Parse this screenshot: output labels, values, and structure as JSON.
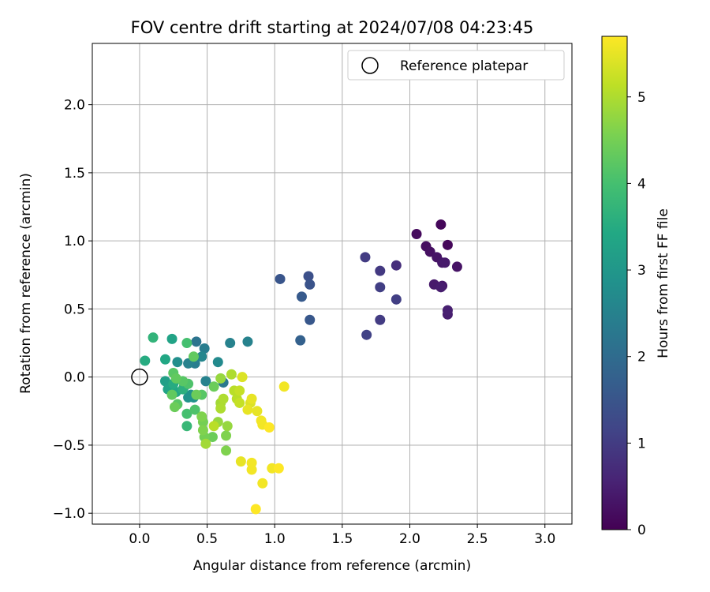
{
  "chart_data": {
    "type": "scatter",
    "title": "FOV centre drift starting at 2024/07/08 04:23:45",
    "xlabel": "Angular distance from reference (arcmin)",
    "ylabel": "Rotation from reference (arcmin)",
    "xlim": [
      -0.35,
      3.2
    ],
    "ylim": [
      -1.08,
      2.45
    ],
    "xticks": [
      0.0,
      0.5,
      1.0,
      1.5,
      2.0,
      2.5,
      3.0
    ],
    "xtick_labels": [
      "0.0",
      "0.5",
      "1.0",
      "1.5",
      "2.0",
      "2.5",
      "3.0"
    ],
    "yticks": [
      -1.0,
      -0.5,
      0.0,
      0.5,
      1.0,
      1.5,
      2.0
    ],
    "ytick_labels": [
      "−1.0",
      "−0.5",
      "0.0",
      "0.5",
      "1.0",
      "1.5",
      "2.0"
    ],
    "grid": true,
    "legend": {
      "placement": "top-right",
      "entries": [
        {
          "label": "Reference platepar",
          "marker": "open-circle"
        }
      ]
    },
    "reference_point": {
      "x": 0.0,
      "y": 0.0
    },
    "colorbar": {
      "label": "Hours from first FF file",
      "colormap": "viridis",
      "range": [
        0,
        5.7
      ],
      "ticks": [
        0,
        1,
        2,
        3,
        4,
        5
      ],
      "tick_labels": [
        "0",
        "1",
        "2",
        "3",
        "4",
        "5"
      ]
    },
    "series": [
      {
        "points": [
          {
            "x": 2.23,
            "y": 1.12,
            "h": 0.1
          },
          {
            "x": 2.05,
            "y": 1.05,
            "h": 0.15
          },
          {
            "x": 2.12,
            "y": 0.96,
            "h": 0.2
          },
          {
            "x": 2.28,
            "y": 0.97,
            "h": 0.1
          },
          {
            "x": 2.15,
            "y": 0.92,
            "h": 0.25
          },
          {
            "x": 2.2,
            "y": 0.88,
            "h": 0.3
          },
          {
            "x": 2.24,
            "y": 0.84,
            "h": 0.35
          },
          {
            "x": 2.26,
            "y": 0.84,
            "h": 0.4
          },
          {
            "x": 2.35,
            "y": 0.81,
            "h": 0.3
          },
          {
            "x": 2.18,
            "y": 0.68,
            "h": 0.4
          },
          {
            "x": 2.23,
            "y": 0.66,
            "h": 0.45
          },
          {
            "x": 2.24,
            "y": 0.67,
            "h": 0.35
          },
          {
            "x": 2.28,
            "y": 0.49,
            "h": 0.5
          },
          {
            "x": 2.28,
            "y": 0.46,
            "h": 0.45
          },
          {
            "x": 1.9,
            "y": 0.82,
            "h": 0.75
          },
          {
            "x": 1.78,
            "y": 0.78,
            "h": 0.95
          },
          {
            "x": 1.67,
            "y": 0.88,
            "h": 1.0
          },
          {
            "x": 1.78,
            "y": 0.66,
            "h": 1.05
          },
          {
            "x": 1.9,
            "y": 0.57,
            "h": 1.05
          },
          {
            "x": 1.78,
            "y": 0.42,
            "h": 1.0
          },
          {
            "x": 1.68,
            "y": 0.31,
            "h": 1.1
          },
          {
            "x": 1.04,
            "y": 0.72,
            "h": 1.5
          },
          {
            "x": 1.25,
            "y": 0.74,
            "h": 1.4
          },
          {
            "x": 1.26,
            "y": 0.68,
            "h": 1.45
          },
          {
            "x": 1.2,
            "y": 0.59,
            "h": 1.6
          },
          {
            "x": 1.26,
            "y": 0.42,
            "h": 1.55
          },
          {
            "x": 1.19,
            "y": 0.27,
            "h": 1.75
          },
          {
            "x": 0.42,
            "y": 0.26,
            "h": 2.2
          },
          {
            "x": 0.48,
            "y": 0.21,
            "h": 2.4
          },
          {
            "x": 0.67,
            "y": 0.25,
            "h": 2.5
          },
          {
            "x": 0.8,
            "y": 0.26,
            "h": 2.5
          },
          {
            "x": 0.46,
            "y": 0.15,
            "h": 2.6
          },
          {
            "x": 0.41,
            "y": 0.1,
            "h": 2.4
          },
          {
            "x": 0.58,
            "y": 0.11,
            "h": 2.7
          },
          {
            "x": 0.28,
            "y": 0.11,
            "h": 2.8
          },
          {
            "x": 0.36,
            "y": 0.1,
            "h": 2.5
          },
          {
            "x": 0.49,
            "y": -0.03,
            "h": 2.5
          },
          {
            "x": 0.62,
            "y": -0.04,
            "h": 2.3
          },
          {
            "x": 0.33,
            "y": -0.07,
            "h": 2.6
          },
          {
            "x": 0.38,
            "y": -0.13,
            "h": 2.9
          },
          {
            "x": 0.36,
            "y": -0.15,
            "h": 2.9
          },
          {
            "x": 0.4,
            "y": -0.15,
            "h": 2.9
          },
          {
            "x": 0.24,
            "y": 0.28,
            "h": 3.3
          },
          {
            "x": 0.19,
            "y": 0.13,
            "h": 3.4
          },
          {
            "x": 0.04,
            "y": 0.12,
            "h": 3.5
          },
          {
            "x": 0.1,
            "y": 0.29,
            "h": 3.7
          },
          {
            "x": 0.19,
            "y": -0.03,
            "h": 3.2
          },
          {
            "x": 0.21,
            "y": -0.09,
            "h": 3.3
          },
          {
            "x": 0.27,
            "y": -0.11,
            "h": 3.4
          },
          {
            "x": 0.25,
            "y": -0.05,
            "h": 3.5
          },
          {
            "x": 0.32,
            "y": -0.09,
            "h": 3.6
          },
          {
            "x": 0.35,
            "y": 0.25,
            "h": 4.0
          },
          {
            "x": 0.4,
            "y": 0.15,
            "h": 4.3
          },
          {
            "x": 0.25,
            "y": 0.03,
            "h": 4.2
          },
          {
            "x": 0.27,
            "y": -0.01,
            "h": 4.3
          },
          {
            "x": 0.32,
            "y": -0.03,
            "h": 4.2
          },
          {
            "x": 0.36,
            "y": -0.05,
            "h": 4.1
          },
          {
            "x": 0.24,
            "y": -0.13,
            "h": 4.3
          },
          {
            "x": 0.28,
            "y": -0.2,
            "h": 4.2
          },
          {
            "x": 0.26,
            "y": -0.22,
            "h": 4.4
          },
          {
            "x": 0.42,
            "y": -0.13,
            "h": 4.4
          },
          {
            "x": 0.46,
            "y": -0.13,
            "h": 4.2
          },
          {
            "x": 0.41,
            "y": -0.24,
            "h": 4.1
          },
          {
            "x": 0.35,
            "y": -0.27,
            "h": 4.0
          },
          {
            "x": 0.35,
            "y": -0.36,
            "h": 3.8
          },
          {
            "x": 0.46,
            "y": -0.29,
            "h": 4.6
          },
          {
            "x": 0.47,
            "y": -0.33,
            "h": 4.5
          },
          {
            "x": 0.47,
            "y": -0.39,
            "h": 4.6
          },
          {
            "x": 0.48,
            "y": -0.44,
            "h": 4.5
          },
          {
            "x": 0.54,
            "y": -0.44,
            "h": 4.4
          },
          {
            "x": 0.55,
            "y": -0.07,
            "h": 4.4
          },
          {
            "x": 0.64,
            "y": -0.43,
            "h": 4.6
          },
          {
            "x": 0.64,
            "y": -0.54,
            "h": 4.6
          },
          {
            "x": 0.49,
            "y": -0.49,
            "h": 4.9
          },
          {
            "x": 0.58,
            "y": -0.33,
            "h": 4.8
          },
          {
            "x": 0.55,
            "y": -0.36,
            "h": 5.1
          },
          {
            "x": 0.65,
            "y": -0.36,
            "h": 4.8
          },
          {
            "x": 0.6,
            "y": -0.19,
            "h": 4.9
          },
          {
            "x": 0.6,
            "y": -0.23,
            "h": 5.0
          },
          {
            "x": 0.62,
            "y": -0.16,
            "h": 5.0
          },
          {
            "x": 0.6,
            "y": -0.01,
            "h": 4.8
          },
          {
            "x": 0.68,
            "y": 0.02,
            "h": 5.0
          },
          {
            "x": 0.7,
            "y": -0.1,
            "h": 5.1
          },
          {
            "x": 0.74,
            "y": -0.1,
            "h": 5.2
          },
          {
            "x": 0.72,
            "y": -0.16,
            "h": 5.1
          },
          {
            "x": 0.74,
            "y": -0.19,
            "h": 5.2
          },
          {
            "x": 0.76,
            "y": 0.0,
            "h": 5.4
          },
          {
            "x": 0.8,
            "y": -0.24,
            "h": 5.5
          },
          {
            "x": 0.83,
            "y": -0.16,
            "h": 5.5
          },
          {
            "x": 0.82,
            "y": -0.19,
            "h": 5.4
          },
          {
            "x": 0.87,
            "y": -0.25,
            "h": 5.5
          },
          {
            "x": 0.9,
            "y": -0.32,
            "h": 5.6
          },
          {
            "x": 0.91,
            "y": -0.35,
            "h": 5.6
          },
          {
            "x": 0.96,
            "y": -0.37,
            "h": 5.7
          },
          {
            "x": 1.07,
            "y": -0.07,
            "h": 5.6
          },
          {
            "x": 0.75,
            "y": -0.62,
            "h": 5.5
          },
          {
            "x": 0.83,
            "y": -0.63,
            "h": 5.6
          },
          {
            "x": 0.83,
            "y": -0.68,
            "h": 5.6
          },
          {
            "x": 0.98,
            "y": -0.67,
            "h": 5.6
          },
          {
            "x": 1.03,
            "y": -0.67,
            "h": 5.7
          },
          {
            "x": 0.91,
            "y": -0.78,
            "h": 5.6
          },
          {
            "x": 0.86,
            "y": -0.97,
            "h": 5.7
          }
        ]
      }
    ]
  }
}
